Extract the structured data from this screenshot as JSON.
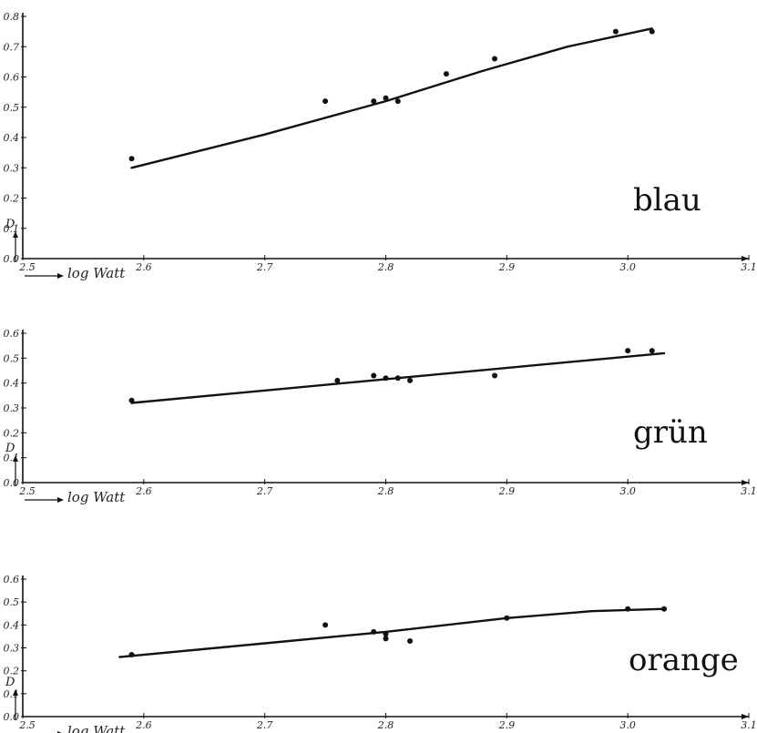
{
  "chart_data": [
    {
      "type": "scatter",
      "panel_label": "blau",
      "ylabel": "D",
      "xlabel": "log Watt",
      "xlim": [
        2.5,
        3.1
      ],
      "ylim": [
        0.0,
        0.8
      ],
      "x_ticks": [
        "2.5",
        "2.6",
        "2.7",
        "2.8",
        "2.9",
        "3.0",
        "3.1"
      ],
      "y_ticks": [
        "0.0",
        "0.1",
        "0.2",
        "0.3",
        "0.4",
        "0.5",
        "0.6",
        "0.7",
        "0.8"
      ],
      "points": [
        {
          "x": 2.59,
          "y": 0.33
        },
        {
          "x": 2.75,
          "y": 0.52
        },
        {
          "x": 2.79,
          "y": 0.52
        },
        {
          "x": 2.8,
          "y": 0.53
        },
        {
          "x": 2.81,
          "y": 0.52
        },
        {
          "x": 2.85,
          "y": 0.61
        },
        {
          "x": 2.89,
          "y": 0.66
        },
        {
          "x": 2.99,
          "y": 0.75
        },
        {
          "x": 3.02,
          "y": 0.75
        }
      ],
      "fit": [
        {
          "x": 2.59,
          "y": 0.3
        },
        {
          "x": 2.7,
          "y": 0.41
        },
        {
          "x": 2.8,
          "y": 0.52
        },
        {
          "x": 2.88,
          "y": 0.62
        },
        {
          "x": 2.95,
          "y": 0.7
        },
        {
          "x": 3.02,
          "y": 0.76
        }
      ]
    },
    {
      "type": "scatter",
      "panel_label": "grün",
      "ylabel": "D",
      "xlabel": "log Watt",
      "xlim": [
        2.5,
        3.1
      ],
      "ylim": [
        0.0,
        0.6
      ],
      "x_ticks": [
        "2.5",
        "2.6",
        "2.7",
        "2.8",
        "2.9",
        "3.0",
        "3.1"
      ],
      "y_ticks": [
        "0.0",
        "0.1",
        "0.2",
        "0.3",
        "0.4",
        "0.5",
        "0.6"
      ],
      "points": [
        {
          "x": 2.59,
          "y": 0.33
        },
        {
          "x": 2.76,
          "y": 0.41
        },
        {
          "x": 2.79,
          "y": 0.43
        },
        {
          "x": 2.8,
          "y": 0.42
        },
        {
          "x": 2.81,
          "y": 0.42
        },
        {
          "x": 2.82,
          "y": 0.41
        },
        {
          "x": 2.89,
          "y": 0.43
        },
        {
          "x": 3.0,
          "y": 0.53
        },
        {
          "x": 3.02,
          "y": 0.53
        }
      ],
      "fit": [
        {
          "x": 2.59,
          "y": 0.32
        },
        {
          "x": 3.03,
          "y": 0.52
        }
      ]
    },
    {
      "type": "scatter",
      "panel_label": "orange",
      "ylabel": "D",
      "xlabel": "log Watt",
      "xlim": [
        2.5,
        3.1
      ],
      "ylim": [
        0.0,
        0.6
      ],
      "x_ticks": [
        "2.5",
        "2.6",
        "2.7",
        "2.8",
        "2.9",
        "3.0",
        "3.1"
      ],
      "y_ticks": [
        "0.0",
        "0.1",
        "0.2",
        "0.3",
        "0.4",
        "0.5",
        "0.6"
      ],
      "points": [
        {
          "x": 2.59,
          "y": 0.27
        },
        {
          "x": 2.75,
          "y": 0.4
        },
        {
          "x": 2.79,
          "y": 0.37
        },
        {
          "x": 2.8,
          "y": 0.36
        },
        {
          "x": 2.8,
          "y": 0.34
        },
        {
          "x": 2.82,
          "y": 0.33
        },
        {
          "x": 2.9,
          "y": 0.43
        },
        {
          "x": 3.0,
          "y": 0.47
        },
        {
          "x": 3.03,
          "y": 0.47
        }
      ],
      "fit": [
        {
          "x": 2.58,
          "y": 0.26
        },
        {
          "x": 2.7,
          "y": 0.32
        },
        {
          "x": 2.8,
          "y": 0.37
        },
        {
          "x": 2.9,
          "y": 0.43
        },
        {
          "x": 2.97,
          "y": 0.46
        },
        {
          "x": 3.03,
          "y": 0.47
        }
      ]
    }
  ]
}
